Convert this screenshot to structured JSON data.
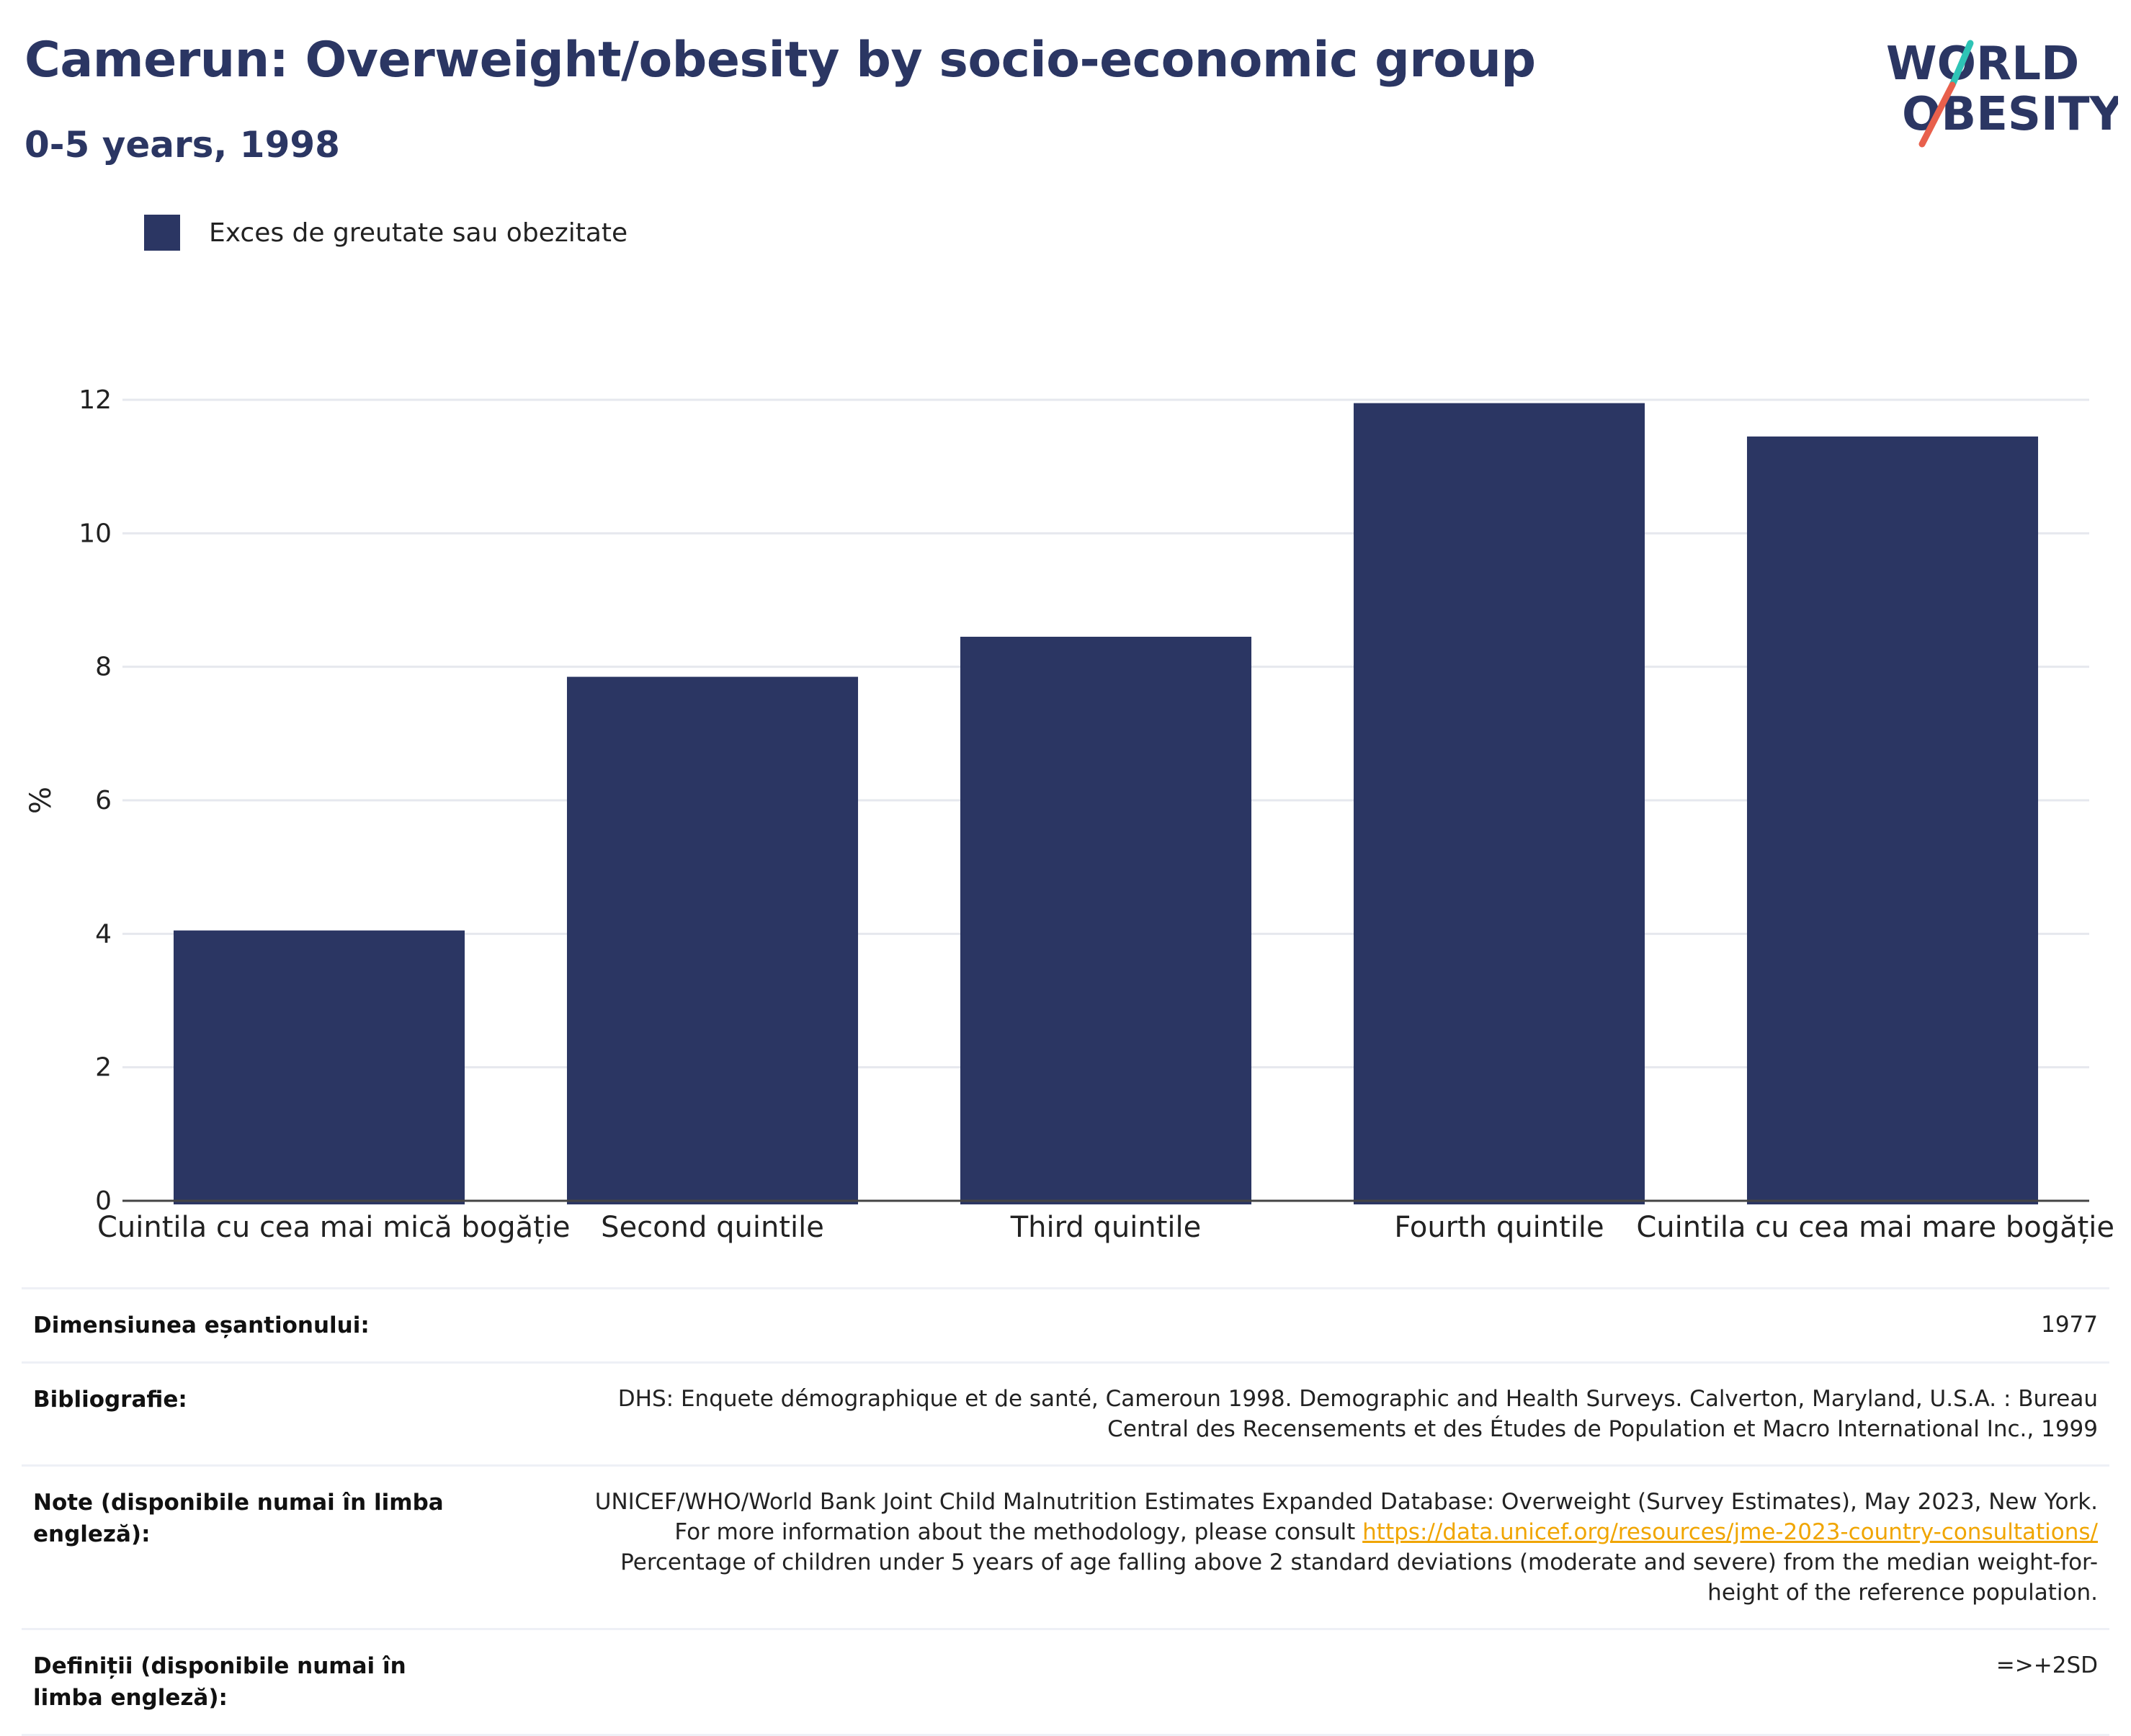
{
  "header": {
    "title": "Camerun: Overweight/obesity by socio-economic group",
    "subtitle": "0-5 years, 1998"
  },
  "logo": {
    "line1": "WORLD",
    "line2": "OBESITY",
    "slash_colors": [
      "#2ec4b6",
      "#e8604c"
    ]
  },
  "colors": {
    "bar": "#2b3663",
    "title": "#2b3663",
    "grid": "#e6e8ee",
    "axis": "#444444",
    "link": "#f0a500"
  },
  "chart_data": {
    "type": "bar",
    "categories": [
      "Cuintila cu cea mai mică bogăție",
      "Second quintile",
      "Third quintile",
      "Fourth quintile",
      "Cuintila cu cea mai mare bogăție"
    ],
    "series": [
      {
        "name": "Exces de greutate sau obezitate",
        "values": [
          4.05,
          7.85,
          8.45,
          11.95,
          11.45
        ]
      }
    ],
    "ylabel": "%",
    "ylim": [
      0,
      12
    ],
    "yticks": [
      0,
      2,
      4,
      6,
      8,
      10,
      12
    ],
    "grid": true,
    "legend": "top-left"
  },
  "info": {
    "sample_label": "Dimensiunea eșantionului:",
    "sample_value": "1977",
    "bib_label": "Bibliografie:",
    "bib_value": "DHS: Enquete démographique et de santé, Cameroun 1998. Demographic and Health Surveys. Calverton, Maryland, U.S.A. : Bureau Central des Recensements et des Études de Population et Macro International Inc., 1999",
    "notes_label": "Note (disponibile numai în limba engleză):",
    "notes_text": "UNICEF/WHO/World Bank Joint Child Malnutrition Estimates Expanded Database: Overweight (Survey Estimates), May 2023, New York. For more information about the methodology, please consult",
    "notes_link": "https://data.unicef.org/resources/jme-2023-country-consultations/",
    "notes_text2": "Percentage of children under 5 years of age falling above 2 standard deviations (moderate and severe) from the median weight-for-height of the reference population.",
    "def_label": "Definiții (disponibile numai în limba engleză):",
    "def_value": "=>+2SD"
  }
}
